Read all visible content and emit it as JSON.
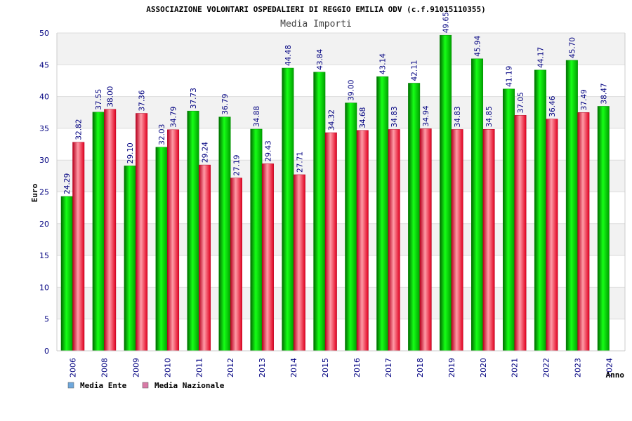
{
  "chart_data": {
    "type": "bar",
    "title": "ASSOCIAZIONE VOLONTARI OSPEDALIERI DI REGGIO EMILIA ODV (c.f.91015110355)",
    "subtitle": "Media Importi",
    "xlabel": "Anno",
    "ylabel": "Euro",
    "ylim": [
      0,
      50
    ],
    "yticks": [
      0,
      5,
      10,
      15,
      20,
      25,
      30,
      35,
      40,
      45,
      50
    ],
    "grid": true,
    "legend_position": "bottom-left",
    "categories": [
      "2006",
      "2008",
      "2009",
      "2010",
      "2011",
      "2012",
      "2013",
      "2014",
      "2015",
      "2016",
      "2017",
      "2018",
      "2019",
      "2020",
      "2021",
      "2022",
      "2023",
      "2024"
    ],
    "series": [
      {
        "name": "Media Ente",
        "color": "#00c000",
        "legend_color": "#6fa8dc",
        "values": [
          24.29,
          37.55,
          29.1,
          32.03,
          37.73,
          36.79,
          34.88,
          44.48,
          43.84,
          39.0,
          43.14,
          42.11,
          49.65,
          45.94,
          41.19,
          44.17,
          45.7,
          38.47
        ],
        "labels": [
          "24.29",
          "37.55",
          "29.10",
          "32.03",
          "37.73",
          "36.79",
          "34.88",
          "44.48",
          "43.84",
          "39.00",
          "43.14",
          "42.11",
          "49.65",
          "45.94",
          "41.19",
          "44.17",
          "45.70",
          "38.47"
        ]
      },
      {
        "name": "Media Nazionale",
        "color": "#e8002a",
        "legend_color": "#d87aa6",
        "values": [
          32.82,
          38.0,
          37.36,
          34.79,
          29.24,
          27.19,
          29.43,
          27.71,
          34.32,
          34.68,
          34.83,
          34.94,
          34.83,
          34.85,
          37.05,
          36.46,
          37.49,
          null
        ],
        "labels": [
          "32.82",
          "38.00",
          "37.36",
          "34.79",
          "29.24",
          "27.19",
          "29.43",
          "27.71",
          "34.32",
          "34.68",
          "34.83",
          "34.94",
          "34.83",
          "34.85",
          "37.05",
          "36.46",
          "37.49",
          ""
        ]
      }
    ]
  }
}
